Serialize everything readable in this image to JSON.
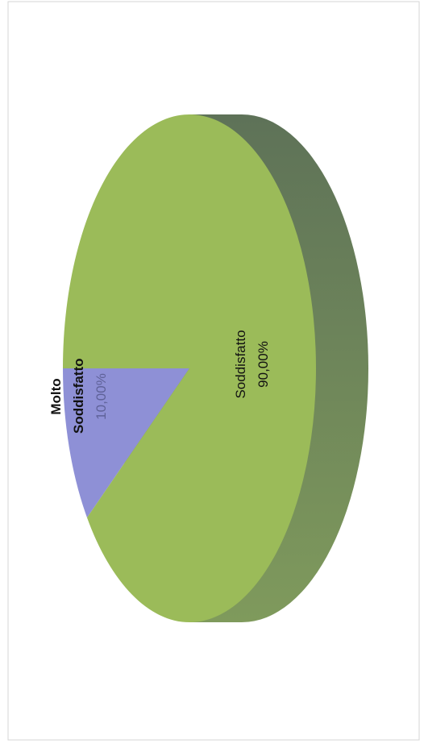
{
  "chart_data": {
    "type": "pie",
    "categories": [
      "Molto Soddisfatto",
      "Soddisfatto"
    ],
    "values": [
      10,
      90
    ],
    "value_labels": [
      "10,00%",
      "90,00%"
    ],
    "colors": [
      "#8e90d6",
      "#9bbb59"
    ]
  }
}
